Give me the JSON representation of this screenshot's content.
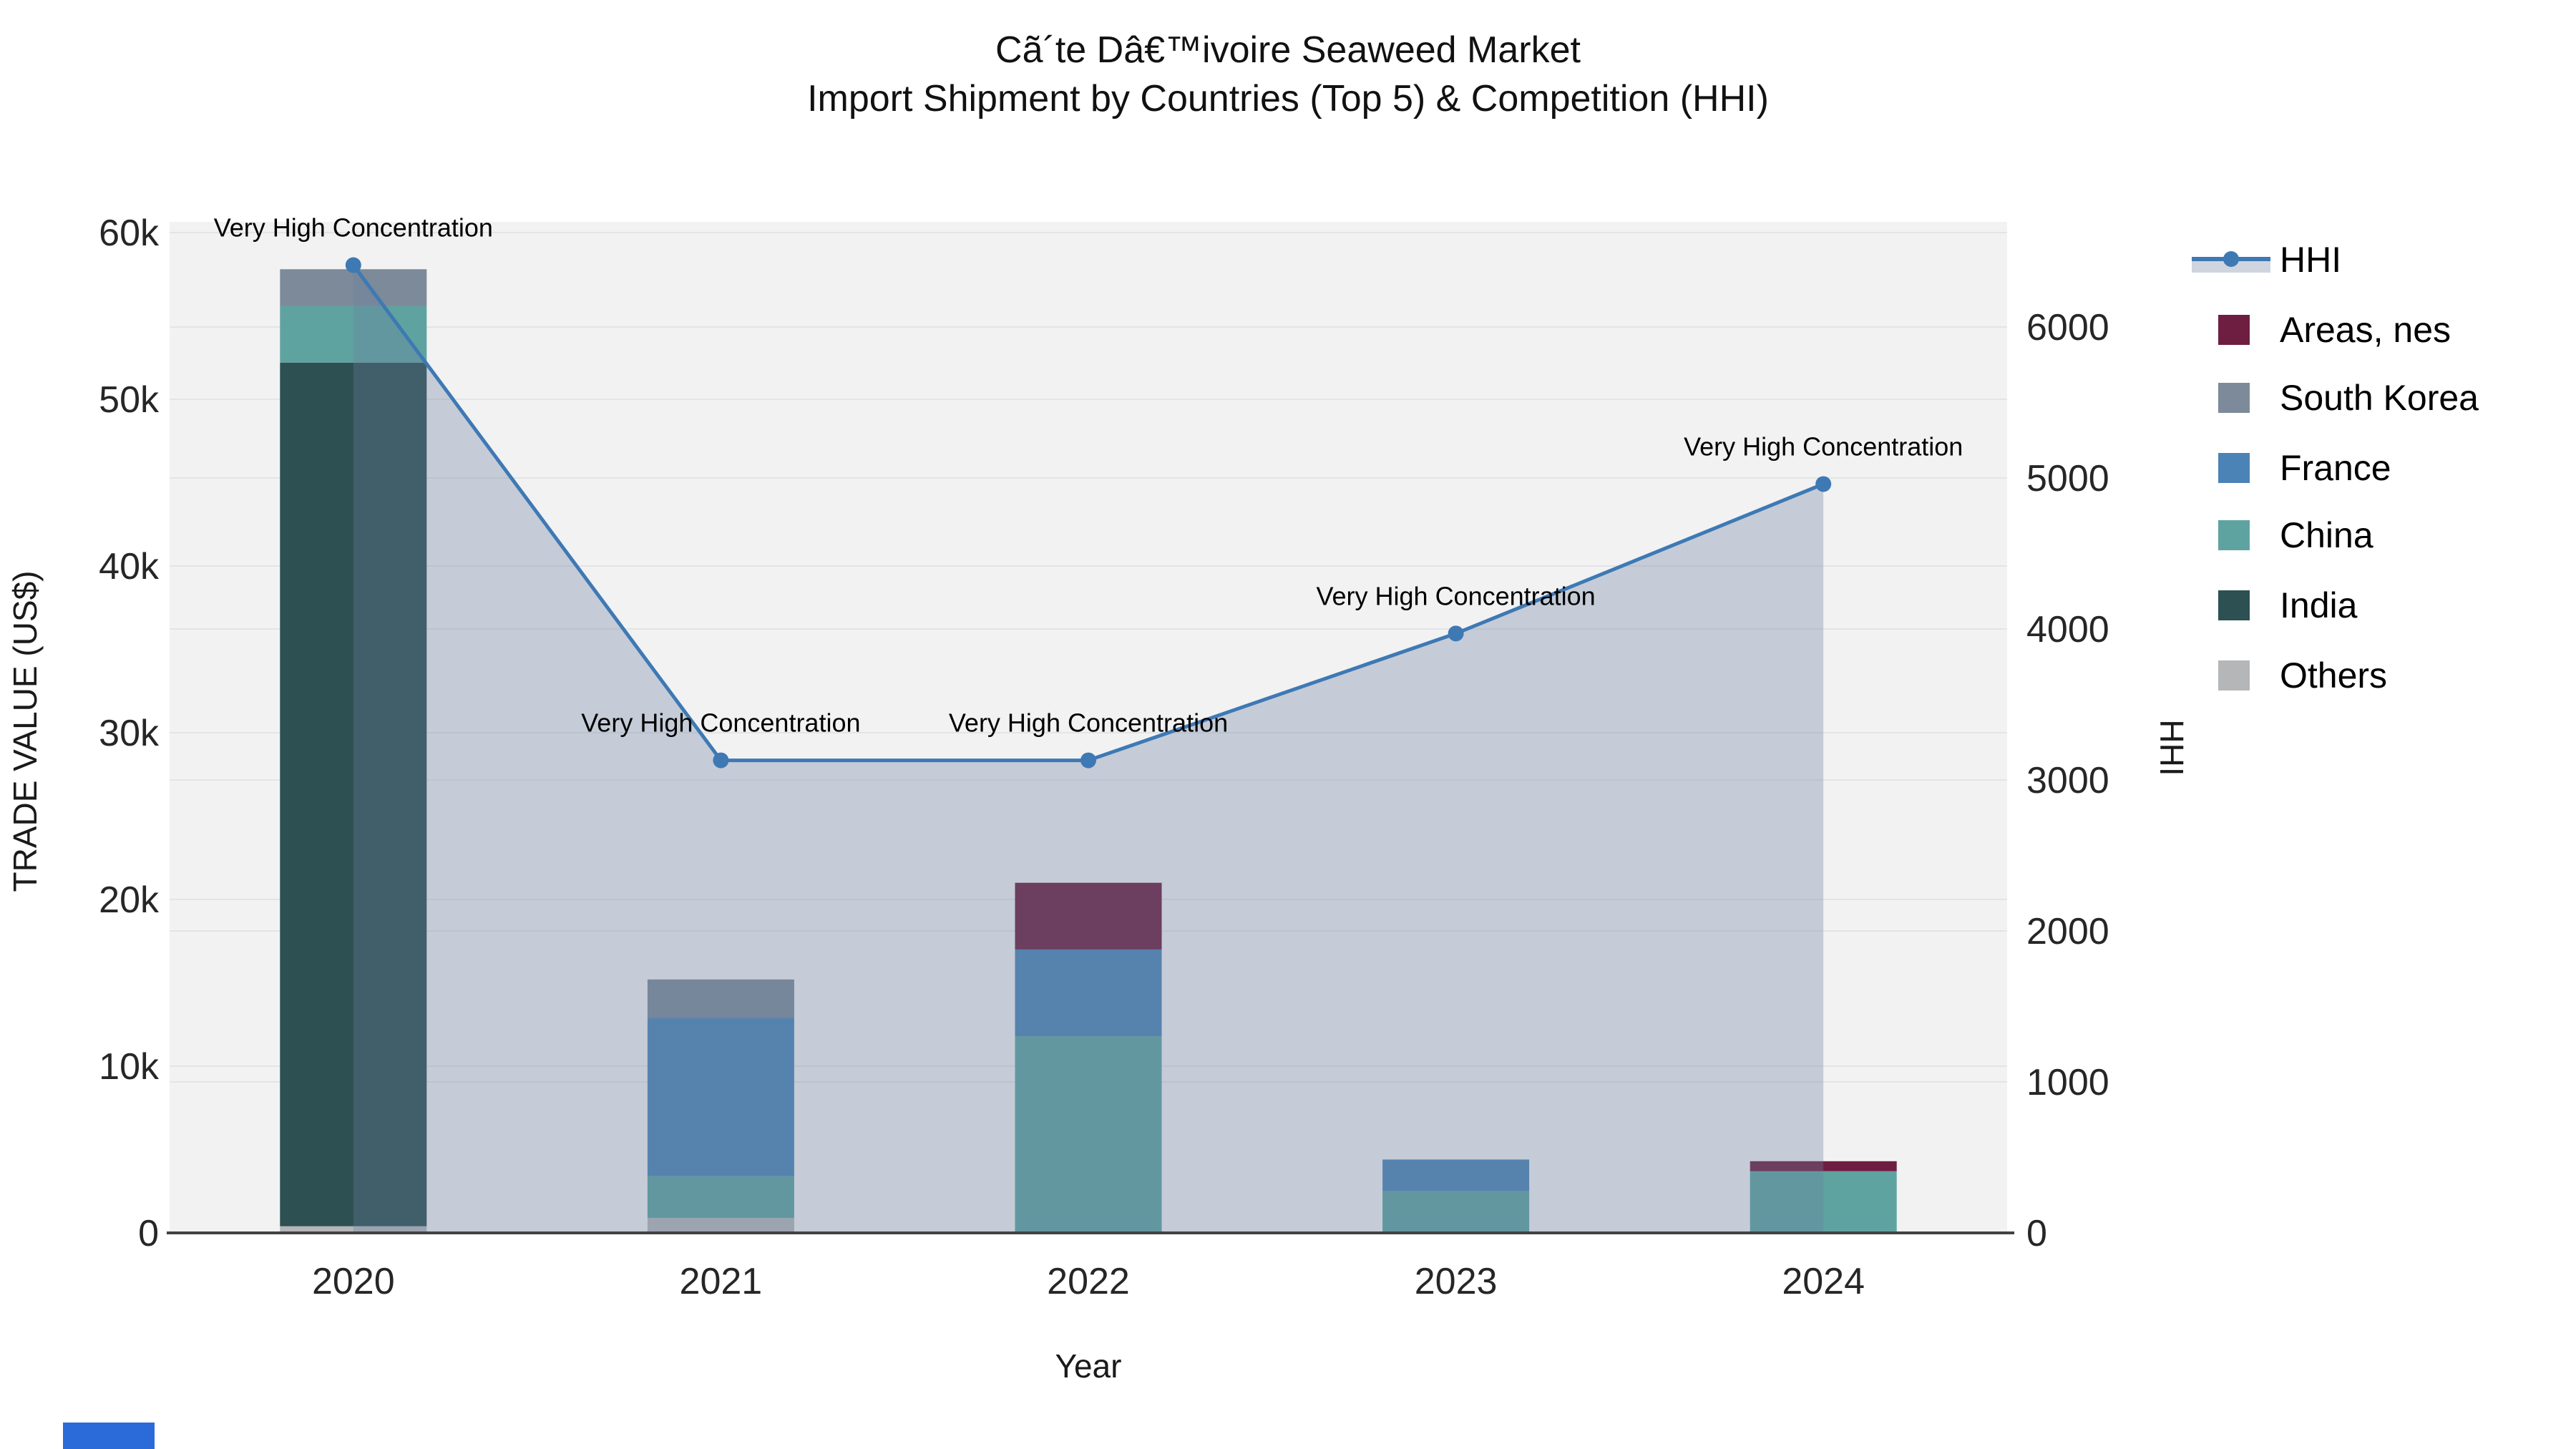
{
  "chart_data": {
    "type": "bar",
    "stacked": true,
    "title": "Cã´te Dâ€™ivoire Seaweed Market",
    "subtitle": "Import Shipment by Countries (Top 5) & Competition (HHI)",
    "xlabel": "Year",
    "ylabel_left": "TRADE VALUE (US$)",
    "ylabel_right": "HHI",
    "categories": [
      "2020",
      "2021",
      "2022",
      "2023",
      "2024"
    ],
    "series": [
      {
        "name": "Others",
        "color": "#b4b6b8",
        "values": [
          400,
          900,
          0,
          0,
          0
        ]
      },
      {
        "name": "India",
        "color": "#2d5052",
        "values": [
          51800,
          0,
          0,
          0,
          0
        ]
      },
      {
        "name": "China",
        "color": "#5fa3a1",
        "values": [
          3400,
          2500,
          11800,
          2500,
          3700
        ]
      },
      {
        "name": "France",
        "color": "#4c83b6",
        "values": [
          0,
          9500,
          5200,
          1900,
          0
        ]
      },
      {
        "name": "South Korea",
        "color": "#7d8a9a",
        "values": [
          2200,
          2300,
          0,
          0,
          0
        ]
      },
      {
        "name": "Areas, nes",
        "color": "#6e1f41",
        "values": [
          0,
          0,
          4000,
          0,
          600
        ]
      }
    ],
    "line_series": {
      "name": "HHI",
      "color": "#3e79b4",
      "area_fill": "rgba(106,129,158,0.33)",
      "values": [
        6410,
        3130,
        3130,
        3970,
        4960
      ]
    },
    "annotations": [
      {
        "year": "2020",
        "text": "Very High Concentration"
      },
      {
        "year": "2021",
        "text": "Very High Concentration"
      },
      {
        "year": "2022",
        "text": "Very High Concentration"
      },
      {
        "year": "2023",
        "text": "Very High Concentration"
      },
      {
        "year": "2024",
        "text": "Very High Concentration"
      }
    ],
    "yaxis_left": {
      "ticks": [
        "0",
        "10k",
        "20k",
        "30k",
        "40k",
        "50k",
        "60k"
      ],
      "tick_values": [
        0,
        10000,
        20000,
        30000,
        40000,
        50000,
        60000
      ],
      "max": 60000
    },
    "yaxis_right": {
      "ticks": [
        "0",
        "1000",
        "2000",
        "3000",
        "4000",
        "5000",
        "6000"
      ],
      "tick_values": [
        0,
        1000,
        2000,
        3000,
        4000,
        5000,
        6000
      ],
      "max": 6000
    },
    "grid": true,
    "legend_position": "right",
    "legend_order": [
      "HHI",
      "Areas, nes",
      "South Korea",
      "France",
      "China",
      "India",
      "Others"
    ]
  },
  "style": {
    "plot_bg": "#f2f2f3",
    "grid_color": "#e3e4e6",
    "axis_line_color": "#424242",
    "tick_color": "#262626",
    "watermark_color": "#2b6bd9"
  }
}
